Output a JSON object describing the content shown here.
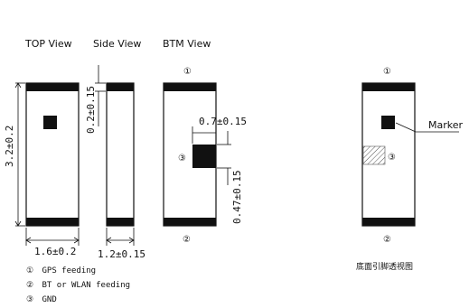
{
  "views": {
    "top": "TOP View",
    "side": "Side View",
    "btm": "BTM View"
  },
  "dimensions": {
    "height": "3.2±0.2",
    "width": "1.6±0.2",
    "side_width": "1.2±0.15",
    "terminal_thickness": "0.2±0.15",
    "pad_width": "0.7±0.15",
    "pad_height": "0.47±0.15"
  },
  "pins": {
    "p1": "①",
    "p2": "②",
    "p3": "③"
  },
  "legend": [
    {
      "num": "①",
      "text": "GPS feeding"
    },
    {
      "num": "②",
      "text": "BT or WLAN feeding"
    },
    {
      "num": "③",
      "text": "GND"
    }
  ],
  "marker_label": "Marker",
  "bottom_caption": "底面引脚透视图"
}
